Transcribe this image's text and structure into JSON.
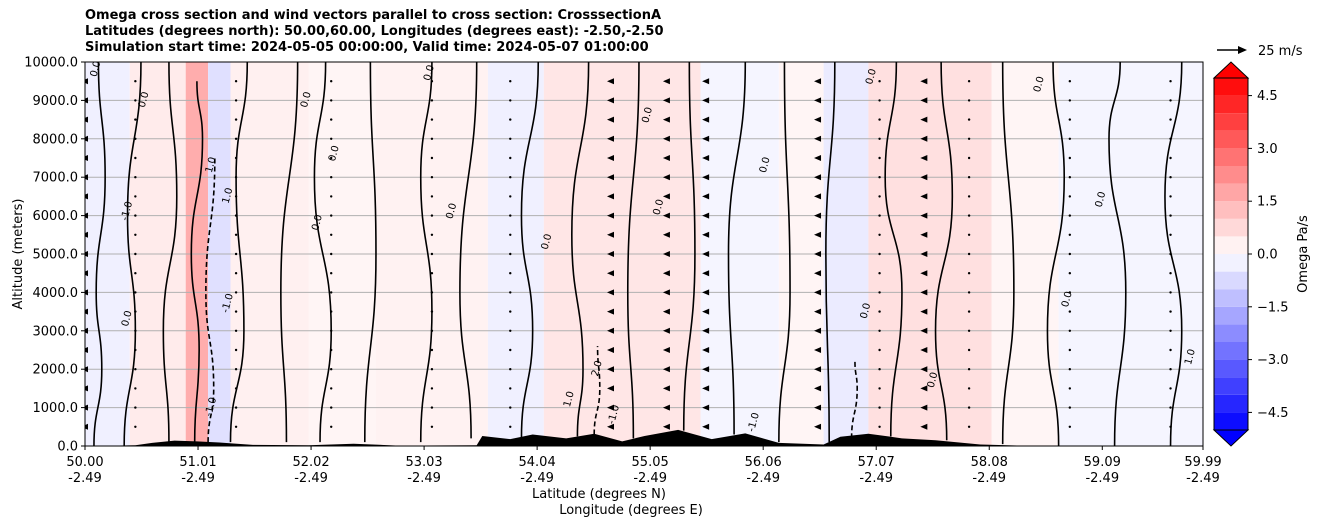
{
  "chart_data": {
    "type": "heatmap",
    "title_lines": [
      "Omega cross section and wind vectors parallel to cross section: CrosssectionA",
      "Latitudes (degrees north): 50.00,60.00, Longitudes (degrees east): -2.50,-2.50",
      "Simulation start time: 2024-05-05 00:00:00, Valid time: 2024-05-07 01:00:00"
    ],
    "ylabel": "Altitude (meters)",
    "xlabel_lines": [
      "Latitude (degrees N)",
      "Longitude (degrees E)"
    ],
    "ylim": [
      0,
      10000
    ],
    "xlim": [
      50.0,
      59.99
    ],
    "y_ticks": [
      {
        "value": 0,
        "label": "0.0"
      },
      {
        "value": 1000,
        "label": "1000.0"
      },
      {
        "value": 2000,
        "label": "2000.0"
      },
      {
        "value": 3000,
        "label": "3000.0"
      },
      {
        "value": 4000,
        "label": "4000.0"
      },
      {
        "value": 5000,
        "label": "5000.0"
      },
      {
        "value": 6000,
        "label": "6000.0"
      },
      {
        "value": 7000,
        "label": "7000.0"
      },
      {
        "value": 8000,
        "label": "8000.0"
      },
      {
        "value": 9000,
        "label": "9000.0"
      },
      {
        "value": 10000,
        "label": "10000.0"
      }
    ],
    "x_ticks": [
      {
        "value": 50.0,
        "lat": "50.00",
        "lon": "-2.49"
      },
      {
        "value": 51.01,
        "lat": "51.01",
        "lon": "-2.49"
      },
      {
        "value": 52.02,
        "lat": "52.02",
        "lon": "-2.49"
      },
      {
        "value": 53.03,
        "lat": "53.03",
        "lon": "-2.49"
      },
      {
        "value": 54.04,
        "lat": "54.04",
        "lon": "-2.49"
      },
      {
        "value": 55.05,
        "lat": "55.05",
        "lon": "-2.49"
      },
      {
        "value": 56.06,
        "lat": "56.06",
        "lon": "-2.49"
      },
      {
        "value": 57.07,
        "lat": "57.07",
        "lon": "-2.49"
      },
      {
        "value": 58.08,
        "lat": "58.08",
        "lon": "-2.49"
      },
      {
        "value": 59.09,
        "lat": "59.09",
        "lon": "-2.49"
      },
      {
        "value": 59.99,
        "lat": "59.99",
        "lon": "-2.49"
      }
    ],
    "grid": "horizontal",
    "colorbar": {
      "label": "Omega Pa/s",
      "range": [
        -5.0,
        5.0
      ],
      "ticks": [
        {
          "value": 4.5,
          "label": "4.5"
        },
        {
          "value": 3.0,
          "label": "3.0"
        },
        {
          "value": 1.5,
          "label": "1.5"
        },
        {
          "value": 0.0,
          "label": "0.0"
        },
        {
          "value": -1.5,
          "label": "−1.5"
        },
        {
          "value": -3.0,
          "label": "−3.0"
        },
        {
          "value": -4.5,
          "label": "−4.5"
        }
      ]
    },
    "quiver_key": {
      "label": "25 m/s"
    },
    "omega_bands": [
      {
        "x0": 50.0,
        "x1": 50.4,
        "value": -0.3
      },
      {
        "x0": 50.4,
        "x1": 50.9,
        "value": 0.4
      },
      {
        "x0": 50.9,
        "x1": 51.1,
        "value": 1.6
      },
      {
        "x0": 51.1,
        "x1": 51.3,
        "value": -0.6
      },
      {
        "x0": 51.3,
        "x1": 52.0,
        "value": 0.3
      },
      {
        "x0": 52.0,
        "x1": 52.6,
        "value": 0.2
      },
      {
        "x0": 52.6,
        "x1": 53.6,
        "value": 0.25
      },
      {
        "x0": 53.6,
        "x1": 54.1,
        "value": -0.3
      },
      {
        "x0": 54.1,
        "x1": 55.5,
        "value": 0.5
      },
      {
        "x0": 55.5,
        "x1": 56.2,
        "value": -0.2
      },
      {
        "x0": 56.2,
        "x1": 56.6,
        "value": 0.2
      },
      {
        "x0": 56.6,
        "x1": 57.0,
        "value": -0.4
      },
      {
        "x0": 57.0,
        "x1": 58.1,
        "value": 0.6
      },
      {
        "x0": 58.1,
        "x1": 58.7,
        "value": 0.2
      },
      {
        "x0": 58.7,
        "x1": 59.99,
        "value": -0.2
      }
    ],
    "contour_labels": [
      {
        "x": 50.12,
        "y": 9800,
        "text": "0.0"
      },
      {
        "x": 50.55,
        "y": 9000,
        "text": "0.0"
      },
      {
        "x": 50.4,
        "y": 6100,
        "text": "-1.0"
      },
      {
        "x": 50.4,
        "y": 3300,
        "text": "0.0"
      },
      {
        "x": 51.15,
        "y": 7300,
        "text": "1.0"
      },
      {
        "x": 51.3,
        "y": 6500,
        "text": "1.0"
      },
      {
        "x": 51.3,
        "y": 3700,
        "text": "-1.0"
      },
      {
        "x": 51.15,
        "y": 1000,
        "text": "-1.0"
      },
      {
        "x": 52.0,
        "y": 9000,
        "text": "0.0"
      },
      {
        "x": 52.1,
        "y": 5800,
        "text": "0.0"
      },
      {
        "x": 52.25,
        "y": 7600,
        "text": "0.0"
      },
      {
        "x": 53.1,
        "y": 9700,
        "text": "0.0"
      },
      {
        "x": 53.3,
        "y": 6100,
        "text": "0.0"
      },
      {
        "x": 54.15,
        "y": 5300,
        "text": "0.0"
      },
      {
        "x": 54.35,
        "y": 1200,
        "text": "1.0"
      },
      {
        "x": 54.6,
        "y": 2000,
        "text": "2.0"
      },
      {
        "x": 54.75,
        "y": 800,
        "text": "-1.0"
      },
      {
        "x": 55.05,
        "y": 8600,
        "text": "0.0"
      },
      {
        "x": 55.15,
        "y": 6200,
        "text": "0.0"
      },
      {
        "x": 56.1,
        "y": 7300,
        "text": "0.0"
      },
      {
        "x": 56.0,
        "y": 600,
        "text": "-1.0"
      },
      {
        "x": 57.05,
        "y": 9600,
        "text": "0.0"
      },
      {
        "x": 57.0,
        "y": 3500,
        "text": "0.0"
      },
      {
        "x": 57.6,
        "y": 1700,
        "text": "0.0"
      },
      {
        "x": 58.55,
        "y": 9400,
        "text": "0.0"
      },
      {
        "x": 58.8,
        "y": 3800,
        "text": "0.0"
      },
      {
        "x": 59.1,
        "y": 6400,
        "text": "0.0"
      },
      {
        "x": 59.9,
        "y": 2300,
        "text": "1.0"
      }
    ],
    "terrain": [
      {
        "x": 50.0,
        "y": 0
      },
      {
        "x": 50.45,
        "y": 20
      },
      {
        "x": 50.6,
        "y": 80
      },
      {
        "x": 50.8,
        "y": 140
      },
      {
        "x": 51.0,
        "y": 120
      },
      {
        "x": 51.2,
        "y": 90
      },
      {
        "x": 51.5,
        "y": 30
      },
      {
        "x": 52.0,
        "y": 20
      },
      {
        "x": 52.4,
        "y": 60
      },
      {
        "x": 52.8,
        "y": 10
      },
      {
        "x": 53.5,
        "y": 20
      },
      {
        "x": 53.55,
        "y": 260
      },
      {
        "x": 53.8,
        "y": 180
      },
      {
        "x": 54.0,
        "y": 300
      },
      {
        "x": 54.3,
        "y": 200
      },
      {
        "x": 54.55,
        "y": 320
      },
      {
        "x": 54.8,
        "y": 120
      },
      {
        "x": 55.0,
        "y": 260
      },
      {
        "x": 55.3,
        "y": 420
      },
      {
        "x": 55.6,
        "y": 180
      },
      {
        "x": 55.9,
        "y": 330
      },
      {
        "x": 56.2,
        "y": 80
      },
      {
        "x": 56.6,
        "y": 40
      },
      {
        "x": 56.75,
        "y": 240
      },
      {
        "x": 57.0,
        "y": 320
      },
      {
        "x": 57.3,
        "y": 200
      },
      {
        "x": 57.6,
        "y": 150
      },
      {
        "x": 58.0,
        "y": 40
      },
      {
        "x": 58.5,
        "y": 0
      },
      {
        "x": 59.99,
        "y": 0
      }
    ],
    "contour_lines": [
      {
        "points": [
          [
            50.08,
            0
          ],
          [
            50.15,
            2000
          ],
          [
            50.1,
            4000
          ],
          [
            50.18,
            7000
          ],
          [
            50.12,
            10000
          ]
        ],
        "style": "solid"
      },
      {
        "points": [
          [
            50.35,
            0
          ],
          [
            50.45,
            3000
          ],
          [
            50.38,
            6000
          ],
          [
            50.5,
            10000
          ]
        ],
        "style": "solid"
      },
      {
        "points": [
          [
            50.75,
            100
          ],
          [
            50.7,
            3000
          ],
          [
            50.82,
            6500
          ],
          [
            50.75,
            10000
          ]
        ],
        "style": "solid"
      },
      {
        "points": [
          [
            50.98,
            100
          ],
          [
            51.02,
            2500
          ],
          [
            50.95,
            5000
          ],
          [
            51.05,
            8000
          ],
          [
            51.0,
            9500
          ]
        ],
        "style": "solid"
      },
      {
        "points": [
          [
            51.1,
            100
          ],
          [
            51.15,
            1500
          ],
          [
            51.08,
            4000
          ],
          [
            51.16,
            7500
          ]
        ],
        "style": "dashed"
      },
      {
        "points": [
          [
            51.3,
            100
          ],
          [
            51.42,
            3000
          ],
          [
            51.35,
            7000
          ],
          [
            51.45,
            10000
          ]
        ],
        "style": "solid"
      },
      {
        "points": [
          [
            51.8,
            100
          ],
          [
            51.75,
            4000
          ],
          [
            51.9,
            10000
          ]
        ],
        "style": "solid"
      },
      {
        "points": [
          [
            52.1,
            100
          ],
          [
            52.2,
            3000
          ],
          [
            52.05,
            7000
          ],
          [
            52.15,
            10000
          ]
        ],
        "style": "solid"
      },
      {
        "points": [
          [
            52.5,
            100
          ],
          [
            52.6,
            5000
          ],
          [
            52.55,
            10000
          ]
        ],
        "style": "solid"
      },
      {
        "points": [
          [
            53.0,
            100
          ],
          [
            53.1,
            3500
          ],
          [
            53.0,
            7000
          ],
          [
            53.1,
            10000
          ]
        ],
        "style": "solid"
      },
      {
        "points": [
          [
            53.45,
            200
          ],
          [
            53.35,
            4000
          ],
          [
            53.5,
            10000
          ]
        ],
        "style": "solid"
      },
      {
        "points": [
          [
            53.9,
            200
          ],
          [
            54.0,
            3000
          ],
          [
            53.9,
            6000
          ],
          [
            54.05,
            10000
          ]
        ],
        "style": "solid"
      },
      {
        "points": [
          [
            54.4,
            250
          ],
          [
            54.45,
            2000
          ],
          [
            54.35,
            5500
          ],
          [
            54.5,
            10000
          ]
        ],
        "style": "solid"
      },
      {
        "points": [
          [
            54.55,
            300
          ],
          [
            54.6,
            1500
          ],
          [
            54.58,
            2600
          ]
        ],
        "style": "dashed"
      },
      {
        "points": [
          [
            54.9,
            200
          ],
          [
            54.85,
            4000
          ],
          [
            54.95,
            10000
          ]
        ],
        "style": "solid"
      },
      {
        "points": [
          [
            55.35,
            400
          ],
          [
            55.45,
            5000
          ],
          [
            55.4,
            10000
          ]
        ],
        "style": "solid"
      },
      {
        "points": [
          [
            55.8,
            300
          ],
          [
            55.75,
            5000
          ],
          [
            55.9,
            10000
          ]
        ],
        "style": "solid"
      },
      {
        "points": [
          [
            56.2,
            100
          ],
          [
            56.3,
            4000
          ],
          [
            56.25,
            10000
          ]
        ],
        "style": "solid"
      },
      {
        "points": [
          [
            56.65,
            100
          ],
          [
            56.62,
            5000
          ],
          [
            56.7,
            10000
          ]
        ],
        "style": "solid"
      },
      {
        "points": [
          [
            56.85,
            200
          ],
          [
            56.9,
            1500
          ],
          [
            56.88,
            2200
          ]
        ],
        "style": "dashed"
      },
      {
        "points": [
          [
            57.2,
            250
          ],
          [
            57.3,
            4000
          ],
          [
            57.15,
            7000
          ],
          [
            57.25,
            10000
          ]
        ],
        "style": "solid"
      },
      {
        "points": [
          [
            57.7,
            150
          ],
          [
            57.6,
            3000
          ],
          [
            57.75,
            6500
          ],
          [
            57.65,
            10000
          ]
        ],
        "style": "solid"
      },
      {
        "points": [
          [
            58.2,
            50
          ],
          [
            58.3,
            4000
          ],
          [
            58.2,
            10000
          ]
        ],
        "style": "solid"
      },
      {
        "points": [
          [
            58.7,
            0
          ],
          [
            58.6,
            3000
          ],
          [
            58.75,
            7000
          ],
          [
            58.65,
            10000
          ]
        ],
        "style": "solid"
      },
      {
        "points": [
          [
            59.2,
            0
          ],
          [
            59.3,
            4000
          ],
          [
            59.15,
            8000
          ],
          [
            59.25,
            10000
          ]
        ],
        "style": "solid"
      },
      {
        "points": [
          [
            59.7,
            0
          ],
          [
            59.8,
            3000
          ],
          [
            59.65,
            6500
          ],
          [
            59.8,
            10000
          ]
        ],
        "style": "solid"
      }
    ],
    "wind_columns": [
      {
        "x": 50.0,
        "u": -1
      },
      {
        "x": 50.45,
        "u": 0
      },
      {
        "x": 51.35,
        "u": 0
      },
      {
        "x": 52.2,
        "u": 0
      },
      {
        "x": 53.1,
        "u": 0
      },
      {
        "x": 53.8,
        "u": 0
      },
      {
        "x": 54.7,
        "u": -1
      },
      {
        "x": 55.2,
        "u": -1
      },
      {
        "x": 55.55,
        "u": -1
      },
      {
        "x": 56.55,
        "u": -1
      },
      {
        "x": 57.1,
        "u": 0
      },
      {
        "x": 57.5,
        "u": -1
      },
      {
        "x": 57.9,
        "u": 0
      },
      {
        "x": 58.8,
        "u": 0
      },
      {
        "x": 59.7,
        "u": 0
      }
    ]
  }
}
